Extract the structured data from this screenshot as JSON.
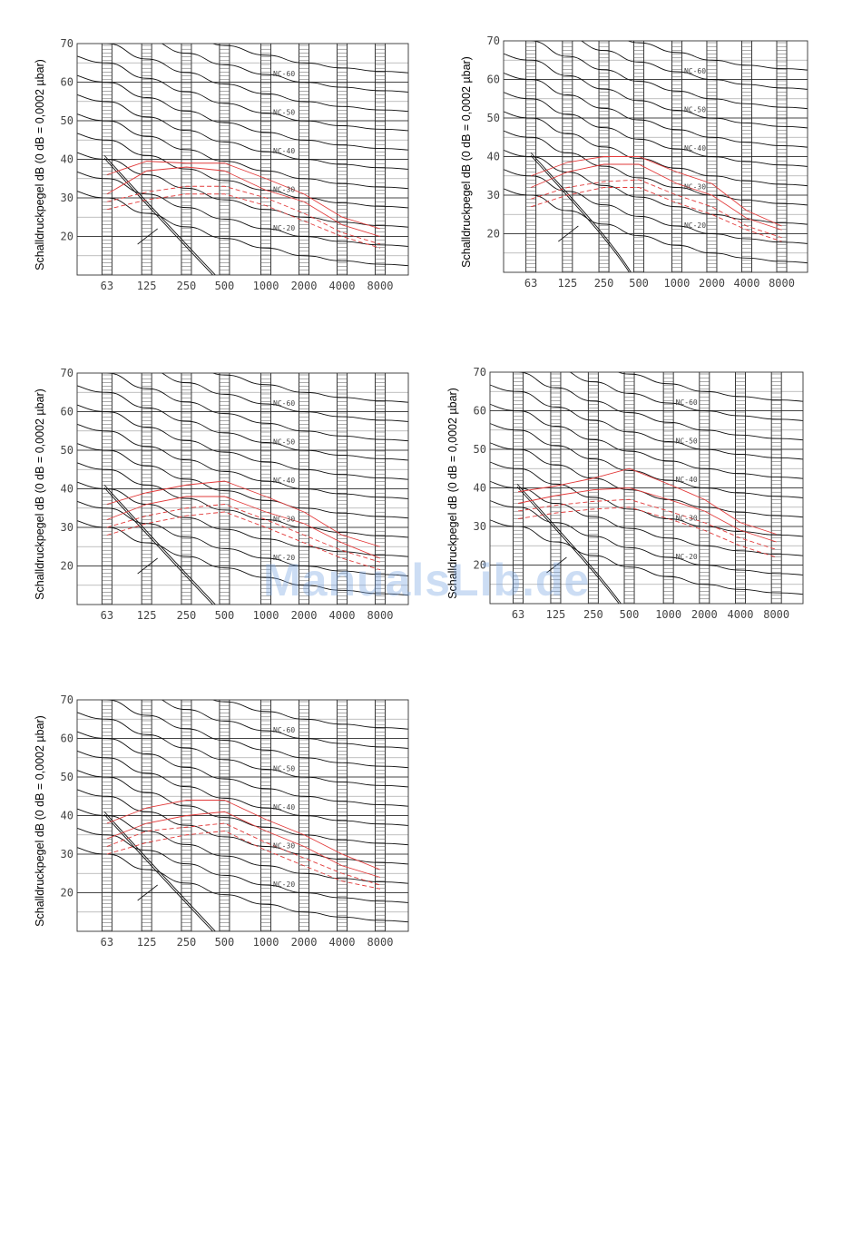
{
  "watermark": "ManualsLib.de",
  "colors": {
    "curves": "#000000",
    "measured": "#e23a3a",
    "grid": "#999999"
  },
  "chart_data": [
    {
      "type": "line",
      "ylabel": "Schalldruckpegel dB (0 dB = 0,0002 µbar)",
      "x": [
        "63",
        "125",
        "250",
        "500",
        "1000",
        "2000",
        "4000",
        "8000"
      ],
      "y_ticks": [
        "70",
        "60",
        "50",
        "40",
        "30",
        "20"
      ],
      "ylim": [
        10,
        70
      ],
      "nc_labels": [
        "NC-60",
        "NC-50",
        "NC-40",
        "NC-30",
        "NC-20"
      ],
      "series": [
        {
          "values": [
            36,
            39.5,
            39,
            39,
            35,
            31,
            25,
            22
          ]
        },
        {
          "values": [
            31,
            37,
            38,
            37,
            32,
            29,
            23,
            20
          ]
        },
        {
          "values": [
            29,
            31.5,
            33,
            33,
            30,
            26,
            21,
            18
          ]
        },
        {
          "values": [
            27,
            29.5,
            31,
            31,
            28,
            24,
            20,
            17
          ]
        }
      ]
    },
    {
      "type": "line",
      "ylabel": "Schalldruckpegel dB (0 dB = 0,0002 µbar)",
      "x": [
        "63",
        "125",
        "250",
        "500",
        "1000",
        "2000",
        "4000",
        "8000"
      ],
      "y_ticks": [
        "70",
        "60",
        "50",
        "40",
        "30",
        "20"
      ],
      "ylim": [
        10,
        70
      ],
      "nc_labels": [
        "NC-60",
        "NC-50",
        "NC-40",
        "NC-30",
        "NC-20"
      ],
      "series": [
        {
          "values": [
            35,
            38.5,
            40,
            40,
            36,
            33,
            26,
            22
          ]
        },
        {
          "values": [
            32,
            36,
            38,
            38,
            33,
            30,
            24,
            21
          ]
        },
        {
          "values": [
            29,
            32,
            33.5,
            34,
            30,
            27,
            22,
            19
          ]
        },
        {
          "values": [
            27,
            30,
            32,
            32,
            28,
            25,
            21,
            18
          ]
        }
      ]
    },
    {
      "type": "line",
      "ylabel": "Schalldruckpegel dB (0 dB = 0,0002 µbar)",
      "x": [
        "63",
        "125",
        "250",
        "500",
        "1000",
        "2000",
        "4000",
        "8000"
      ],
      "y_ticks": [
        "70",
        "60",
        "50",
        "40",
        "30",
        "20"
      ],
      "ylim": [
        10,
        70
      ],
      "nc_labels": [
        "NC-60",
        "NC-50",
        "NC-40",
        "NC-30",
        "NC-20"
      ],
      "series": [
        {
          "values": [
            36,
            39,
            41,
            42,
            38,
            34,
            28,
            25
          ]
        },
        {
          "values": [
            32,
            36,
            38,
            38,
            34,
            31,
            26,
            22
          ]
        },
        {
          "values": [
            30,
            33,
            35,
            36,
            32,
            28,
            24,
            21
          ]
        },
        {
          "values": [
            28,
            31,
            33,
            34,
            30,
            26,
            22,
            19
          ]
        }
      ]
    },
    {
      "type": "line",
      "ylabel": "Schalldruckpegel dB (0 dB = 0,0002 µbar)",
      "x": [
        "63",
        "125",
        "250",
        "500",
        "1000",
        "2000",
        "4000",
        "8000"
      ],
      "y_ticks": [
        "70",
        "60",
        "50",
        "40",
        "30",
        "20"
      ],
      "ylim": [
        10,
        70
      ],
      "nc_labels": [
        "NC-60",
        "NC-50",
        "NC-40",
        "NC-30",
        "NC-20"
      ],
      "series": [
        {
          "values": [
            39,
            40.5,
            42.5,
            45,
            41,
            37,
            31,
            28
          ]
        },
        {
          "values": [
            36,
            38,
            39.5,
            40,
            37,
            34,
            29,
            26
          ]
        },
        {
          "values": [
            34,
            35.5,
            36.5,
            37,
            34,
            31,
            27,
            24
          ]
        },
        {
          "values": [
            32,
            33.5,
            34.5,
            35,
            32,
            29,
            25,
            22
          ]
        }
      ]
    },
    {
      "type": "line",
      "ylabel": "Schalldruckpegel dB (0 dB = 0,0002 µbar)",
      "x": [
        "63",
        "125",
        "250",
        "500",
        "1000",
        "2000",
        "4000",
        "8000"
      ],
      "y_ticks": [
        "70",
        "60",
        "50",
        "40",
        "30",
        "20"
      ],
      "ylim": [
        10,
        70
      ],
      "nc_labels": [
        "NC-60",
        "NC-50",
        "NC-40",
        "NC-30",
        "NC-20"
      ],
      "series": [
        {
          "values": [
            38,
            42,
            44,
            44,
            39,
            35,
            30,
            26
          ]
        },
        {
          "values": [
            34,
            38,
            40,
            41,
            36,
            32,
            27,
            24
          ]
        },
        {
          "values": [
            32,
            36,
            37,
            38,
            33,
            29,
            25,
            22
          ]
        },
        {
          "values": [
            30,
            33,
            35,
            36,
            31,
            27,
            23,
            21
          ]
        }
      ]
    }
  ]
}
